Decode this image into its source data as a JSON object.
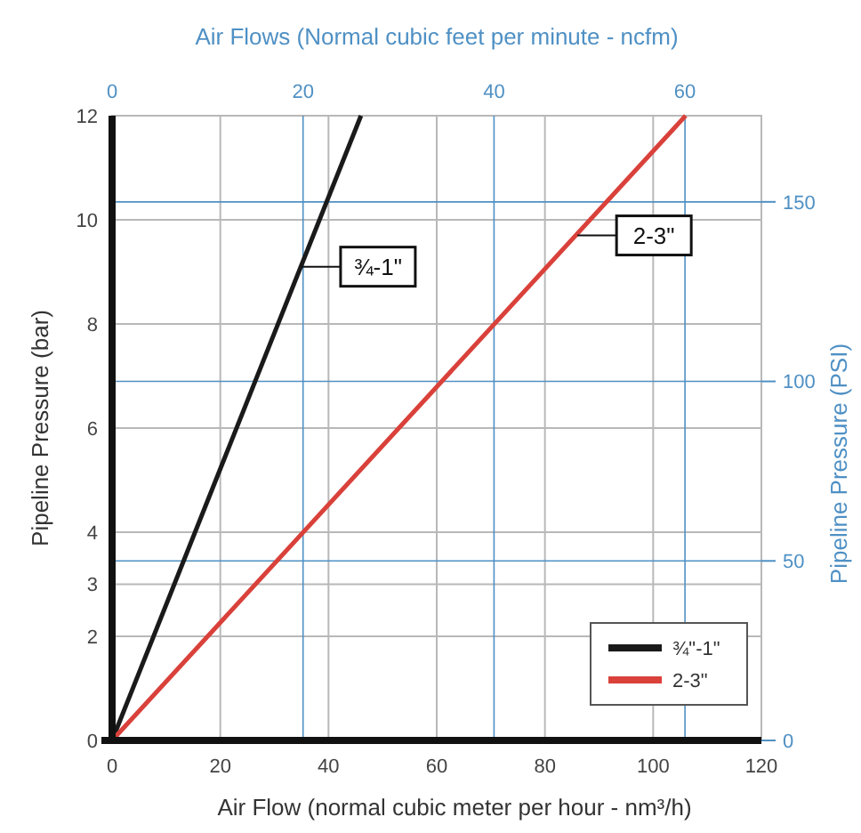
{
  "chart_data": {
    "type": "line",
    "xlabel": "Air Flow (normal cubic meter per hour - nm³/h)",
    "x2label": "Air Flows (Normal cubic feet per minute - ncfm)",
    "ylabel": "Pipeline Pressure (bar)",
    "y2label": "Pipeline Pressure (PSI)",
    "xlim": [
      0,
      120
    ],
    "xticks": [
      0,
      20,
      40,
      60,
      80,
      100,
      120
    ],
    "x2lim": [
      0,
      68
    ],
    "x2ticks": [
      0,
      20,
      40,
      60
    ],
    "ylim": [
      0,
      12
    ],
    "yticks": [
      0,
      2,
      3,
      4,
      6,
      8,
      10,
      12
    ],
    "y2lim": [
      0,
      174
    ],
    "y2ticks": [
      0,
      50,
      100,
      150
    ],
    "grid": true,
    "legend": "bottom right",
    "line_style": "solid",
    "marker": "none",
    "series": [
      {
        "name": "¾\"-1\"",
        "color": "#1a1a1a",
        "x": [
          0,
          46
        ],
        "values": [
          0,
          12
        ]
      },
      {
        "name": "2-3\"",
        "color": "#d9413a",
        "x": [
          0,
          106
        ],
        "values": [
          0,
          12
        ]
      }
    ],
    "annotations": [
      {
        "text": "¾-1\"",
        "x": 35,
        "y": 9.1
      },
      {
        "text": "2-3\"",
        "x": 86,
        "y": 9.7
      }
    ]
  }
}
